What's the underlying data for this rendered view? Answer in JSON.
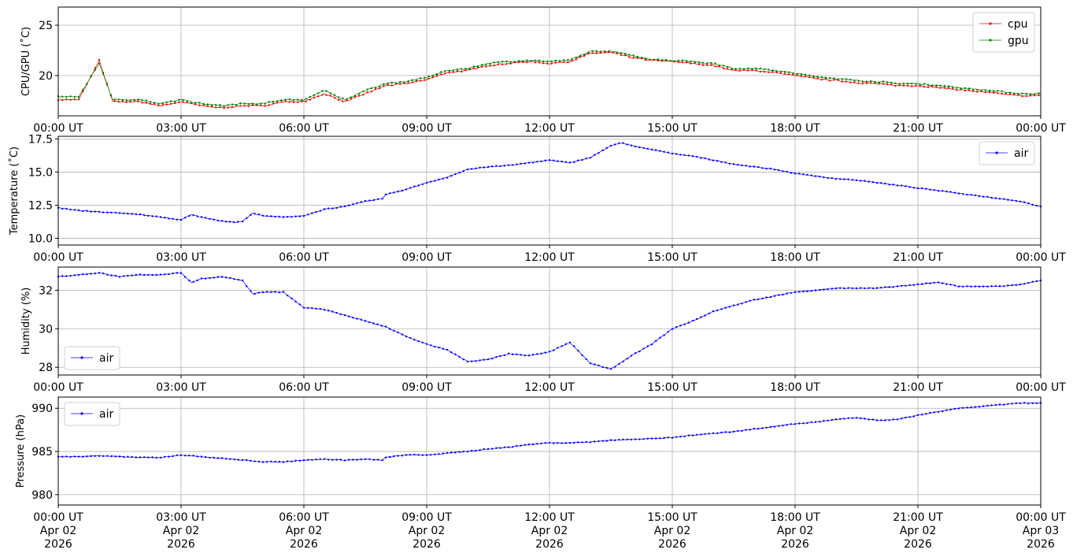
{
  "chart_data": [
    {
      "type": "line",
      "ylabel": "CPU/GPU (˚C)",
      "ylim": [
        16.0,
        26.8
      ],
      "yticks": [
        20,
        25
      ],
      "xlim": [
        "2026-04-02T00:00Z",
        "2026-04-03T00:00Z"
      ],
      "grid": true,
      "legend": "top-right",
      "series": [
        {
          "name": "cpu",
          "color": "#ff0000",
          "x": [
            "00:00",
            "00:30",
            "01:00",
            "01:20",
            "01:40",
            "02:00",
            "02:30",
            "03:00",
            "03:30",
            "04:00",
            "04:30",
            "05:00",
            "05:30",
            "06:00",
            "06:30",
            "07:00",
            "07:30",
            "08:00",
            "08:30",
            "09:00",
            "09:30",
            "10:00",
            "10:30",
            "11:00",
            "11:30",
            "12:00",
            "12:30",
            "13:00",
            "13:30",
            "14:00",
            "14:30",
            "15:00",
            "15:30",
            "16:00",
            "16:30",
            "17:00",
            "17:30",
            "18:00",
            "18:30",
            "19:00",
            "19:30",
            "20:00",
            "20:30",
            "21:00",
            "21:30",
            "22:00",
            "22:30",
            "23:00",
            "23:30",
            "24:00"
          ],
          "y": [
            17.6,
            17.6,
            21.5,
            17.4,
            17.4,
            17.4,
            17.0,
            17.4,
            17.0,
            16.8,
            17.0,
            17.0,
            17.4,
            17.4,
            18.2,
            17.4,
            18.2,
            19.0,
            19.2,
            19.6,
            20.3,
            20.5,
            21.0,
            21.2,
            21.4,
            21.2,
            21.4,
            22.2,
            22.3,
            21.8,
            21.5,
            21.4,
            21.2,
            21.0,
            20.5,
            20.5,
            20.3,
            20.0,
            19.7,
            19.5,
            19.3,
            19.2,
            19.0,
            19.0,
            18.8,
            18.6,
            18.4,
            18.2,
            18.0,
            18.0
          ]
        },
        {
          "name": "gpu",
          "color": "#008000",
          "x": [
            "00:00",
            "00:30",
            "01:00",
            "01:20",
            "01:40",
            "02:00",
            "02:30",
            "03:00",
            "03:30",
            "04:00",
            "04:30",
            "05:00",
            "05:30",
            "06:00",
            "06:30",
            "07:00",
            "07:30",
            "08:00",
            "08:30",
            "09:00",
            "09:30",
            "10:00",
            "10:30",
            "11:00",
            "11:30",
            "12:00",
            "12:30",
            "13:00",
            "13:30",
            "14:00",
            "14:30",
            "15:00",
            "15:30",
            "16:00",
            "16:30",
            "17:00",
            "17:30",
            "18:00",
            "18:30",
            "19:00",
            "19:30",
            "20:00",
            "20:30",
            "21:00",
            "21:30",
            "22:00",
            "22:30",
            "23:00",
            "23:30",
            "24:00"
          ],
          "y": [
            17.9,
            17.9,
            21.2,
            17.6,
            17.6,
            17.6,
            17.2,
            17.6,
            17.2,
            17.0,
            17.2,
            17.2,
            17.6,
            17.6,
            18.5,
            17.6,
            18.5,
            19.2,
            19.4,
            19.8,
            20.5,
            20.7,
            21.2,
            21.4,
            21.5,
            21.4,
            21.5,
            22.4,
            22.4,
            22.0,
            21.6,
            21.5,
            21.4,
            21.2,
            20.7,
            20.7,
            20.5,
            20.2,
            19.9,
            19.7,
            19.5,
            19.4,
            19.2,
            19.2,
            19.0,
            18.8,
            18.6,
            18.4,
            18.2,
            18.2
          ]
        }
      ]
    },
    {
      "type": "line",
      "ylabel": "Temperature (˚C)",
      "ylim": [
        9.5,
        17.7
      ],
      "yticks": [
        10.0,
        12.5,
        15.0,
        17.5
      ],
      "xlim": [
        "2026-04-02T00:00Z",
        "2026-04-03T00:00Z"
      ],
      "grid": true,
      "legend": "top-right",
      "series": [
        {
          "name": "air",
          "color": "#0000ff",
          "x": [
            "00:00",
            "00:30",
            "01:00",
            "01:30",
            "02:00",
            "02:30",
            "03:00",
            "03:15",
            "03:30",
            "04:00",
            "04:20",
            "04:30",
            "04:45",
            "05:00",
            "05:30",
            "06:00",
            "06:30",
            "07:00",
            "07:30",
            "07:55",
            "08:00",
            "08:30",
            "09:00",
            "09:30",
            "10:00",
            "10:30",
            "11:00",
            "11:30",
            "12:00",
            "12:30",
            "13:00",
            "13:30",
            "13:45",
            "14:00",
            "14:30",
            "15:00",
            "15:30",
            "16:00",
            "16:30",
            "17:00",
            "17:30",
            "18:00",
            "18:30",
            "19:00",
            "19:30",
            "20:00",
            "20:30",
            "21:00",
            "21:30",
            "22:00",
            "22:30",
            "23:00",
            "23:30",
            "24:00"
          ],
          "y": [
            12.3,
            12.1,
            12.0,
            11.9,
            11.8,
            11.6,
            11.4,
            11.8,
            11.6,
            11.3,
            11.2,
            11.3,
            11.9,
            11.7,
            11.6,
            11.7,
            12.2,
            12.4,
            12.8,
            13.0,
            13.3,
            13.7,
            14.2,
            14.6,
            15.2,
            15.4,
            15.5,
            15.7,
            15.9,
            15.7,
            16.1,
            17.0,
            17.2,
            17.0,
            16.7,
            16.4,
            16.2,
            15.9,
            15.6,
            15.4,
            15.2,
            14.9,
            14.7,
            14.5,
            14.4,
            14.2,
            14.0,
            13.8,
            13.6,
            13.4,
            13.2,
            13.0,
            12.8,
            12.4
          ]
        }
      ]
    },
    {
      "type": "line",
      "ylabel": "Humidity (%)",
      "ylim": [
        27.6,
        33.2
      ],
      "yticks": [
        28,
        30,
        32
      ],
      "xlim": [
        "2026-04-02T00:00Z",
        "2026-04-03T00:00Z"
      ],
      "grid": true,
      "legend": "bottom-left",
      "series": [
        {
          "name": "air",
          "color": "#0000ff",
          "x": [
            "00:00",
            "00:30",
            "01:00",
            "01:30",
            "02:00",
            "02:30",
            "03:00",
            "03:15",
            "03:30",
            "04:00",
            "04:30",
            "04:45",
            "05:00",
            "05:30",
            "06:00",
            "06:30",
            "07:00",
            "07:30",
            "08:00",
            "08:30",
            "09:00",
            "09:30",
            "10:00",
            "10:30",
            "11:00",
            "11:30",
            "12:00",
            "12:30",
            "13:00",
            "13:30",
            "14:00",
            "14:30",
            "15:00",
            "15:30",
            "16:00",
            "16:30",
            "17:00",
            "17:30",
            "18:00",
            "18:30",
            "19:00",
            "19:30",
            "20:00",
            "20:30",
            "21:00",
            "21:30",
            "22:00",
            "22:30",
            "23:00",
            "23:30",
            "24:00"
          ],
          "y": [
            32.7,
            32.8,
            32.9,
            32.7,
            32.8,
            32.8,
            32.9,
            32.4,
            32.6,
            32.7,
            32.5,
            31.8,
            31.9,
            31.9,
            31.1,
            31.0,
            30.7,
            30.4,
            30.1,
            29.6,
            29.2,
            28.9,
            28.3,
            28.4,
            28.7,
            28.6,
            28.8,
            29.3,
            28.2,
            27.9,
            28.6,
            29.2,
            30.0,
            30.4,
            30.9,
            31.2,
            31.5,
            31.7,
            31.9,
            32.0,
            32.1,
            32.1,
            32.1,
            32.2,
            32.3,
            32.4,
            32.2,
            32.2,
            32.2,
            32.3,
            32.5
          ]
        }
      ]
    },
    {
      "type": "line",
      "ylabel": "Pressure (hPa)",
      "ylim": [
        978.8,
        991.3
      ],
      "yticks": [
        980,
        985,
        990
      ],
      "xlim": [
        "2026-04-02T00:00Z",
        "2026-04-03T00:00Z"
      ],
      "grid": true,
      "legend": "top-left",
      "series": [
        {
          "name": "air",
          "color": "#0000ff",
          "x": [
            "00:00",
            "00:30",
            "01:00",
            "01:30",
            "02:00",
            "02:30",
            "03:00",
            "03:30",
            "04:00",
            "04:30",
            "05:00",
            "05:30",
            "06:00",
            "06:30",
            "07:00",
            "07:30",
            "07:55",
            "08:00",
            "08:30",
            "09:00",
            "09:30",
            "10:00",
            "10:30",
            "11:00",
            "11:30",
            "12:00",
            "12:30",
            "13:00",
            "13:30",
            "14:00",
            "14:30",
            "15:00",
            "15:30",
            "16:00",
            "16:30",
            "17:00",
            "17:30",
            "18:00",
            "18:30",
            "19:00",
            "19:30",
            "20:00",
            "20:30",
            "21:00",
            "21:30",
            "22:00",
            "22:30",
            "23:00",
            "23:30",
            "24:00"
          ],
          "y": [
            984.4,
            984.4,
            984.5,
            984.4,
            984.3,
            984.3,
            984.6,
            984.4,
            984.2,
            984.0,
            983.8,
            983.8,
            984.0,
            984.1,
            984.0,
            984.1,
            984.0,
            984.3,
            984.6,
            984.6,
            984.8,
            985.0,
            985.3,
            985.5,
            985.8,
            986.0,
            986.0,
            986.1,
            986.3,
            986.4,
            986.5,
            986.6,
            986.9,
            987.1,
            987.3,
            987.6,
            987.9,
            988.2,
            988.4,
            988.7,
            988.9,
            988.6,
            988.7,
            989.2,
            989.6,
            990.0,
            990.2,
            990.4,
            990.6,
            990.6
          ]
        }
      ]
    }
  ],
  "x_ticks": [
    {
      "time": "00:00 UT",
      "date": "Apr 02",
      "year": "2026"
    },
    {
      "time": "03:00 UT",
      "date": "Apr 02",
      "year": "2026"
    },
    {
      "time": "06:00 UT",
      "date": "Apr 02",
      "year": "2026"
    },
    {
      "time": "09:00 UT",
      "date": "Apr 02",
      "year": "2026"
    },
    {
      "time": "12:00 UT",
      "date": "Apr 02",
      "year": "2026"
    },
    {
      "time": "15:00 UT",
      "date": "Apr 02",
      "year": "2026"
    },
    {
      "time": "18:00 UT",
      "date": "Apr 02",
      "year": "2026"
    },
    {
      "time": "21:00 UT",
      "date": "Apr 02",
      "year": "2026"
    },
    {
      "time": "00:00 UT",
      "date": "Apr 03",
      "year": "2026"
    }
  ]
}
